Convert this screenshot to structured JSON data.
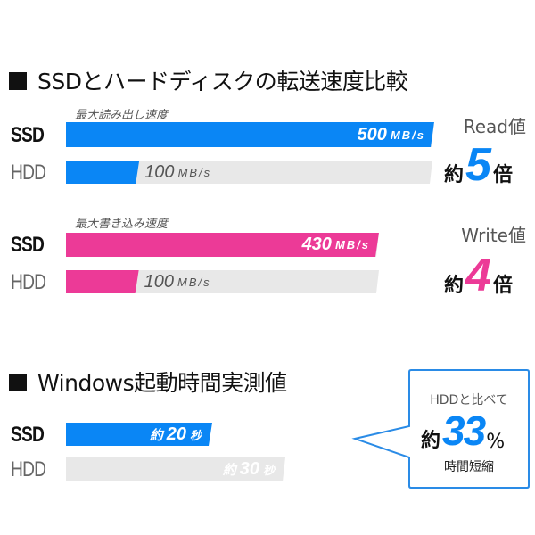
{
  "colors": {
    "read": "#0a86f5",
    "write": "#ec3a97",
    "boot": "#0a86f5",
    "track": "#e8e8e8"
  },
  "chart_data": [
    {
      "type": "bar",
      "title": "SSDとハードディスクの転送速度比較",
      "subtitle": "最大読み出し速度",
      "categories": [
        "SSD",
        "HDD"
      ],
      "values": [
        500,
        100
      ],
      "unit": "MB/s",
      "value_labels": [
        "500",
        "100"
      ],
      "ratio": {
        "top": "Read値",
        "prefix": "約",
        "number": "5",
        "suffix": "倍"
      }
    },
    {
      "type": "bar",
      "subtitle": "最大書き込み速度",
      "categories": [
        "SSD",
        "HDD"
      ],
      "values": [
        430,
        100
      ],
      "unit": "MB/s",
      "value_labels": [
        "430",
        "100"
      ],
      "ratio": {
        "top": "Write値",
        "prefix": "約",
        "number": "4",
        "suffix": "倍"
      }
    },
    {
      "type": "bar",
      "title": "Windows起動時間実測値",
      "categories": [
        "SSD",
        "HDD"
      ],
      "values": [
        20,
        30
      ],
      "prefix": "約",
      "unit": "秒",
      "value_labels": [
        "20",
        "30"
      ],
      "callout": {
        "line1": "HDDと比べて",
        "prefix": "約",
        "number": "33",
        "suffix": "%",
        "line3": "時間短縮"
      }
    }
  ]
}
